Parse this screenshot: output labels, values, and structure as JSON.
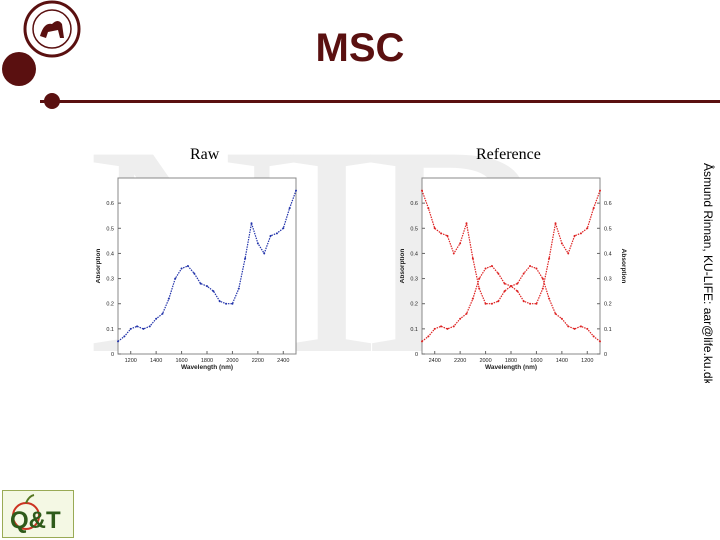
{
  "slide": {
    "title": "MSC",
    "watermark": "NIR",
    "author": "Åsmund Rinnan, KU-LIFE: aar@life.ku.dk",
    "logo_text": "Q&T",
    "panel_left_label": "Raw",
    "panel_right_label": "Reference"
  },
  "colors": {
    "accent": "#5a1010",
    "raw": "#2233aa",
    "ref": "#dd2222"
  },
  "chart_data": [
    {
      "type": "line",
      "xlabel": "Wavelength (nm)",
      "ylabel": "Absorption",
      "xlim": [
        1100,
        2500
      ],
      "ylim": [
        0,
        0.7
      ],
      "xticks": [
        "1200",
        "1400",
        "1600",
        "1800",
        "2000",
        "2200",
        "2400"
      ],
      "yticks": [
        "0",
        "0.1",
        "0.2",
        "0.3",
        "0.4",
        "0.5",
        "0.6"
      ],
      "series": [
        {
          "x": [
            1100,
            1150,
            1200,
            1250,
            1300,
            1350,
            1400,
            1450,
            1500,
            1550,
            1600,
            1650,
            1700,
            1750,
            1800,
            1850,
            1900,
            1950,
            2000,
            2050,
            2100,
            2150,
            2200,
            2250,
            2300,
            2350,
            2400,
            2450,
            2500
          ],
          "y": [
            0.05,
            0.07,
            0.1,
            0.11,
            0.1,
            0.11,
            0.14,
            0.16,
            0.22,
            0.3,
            0.34,
            0.35,
            0.32,
            0.28,
            0.27,
            0.25,
            0.21,
            0.2,
            0.2,
            0.26,
            0.38,
            0.52,
            0.44,
            0.4,
            0.47,
            0.48,
            0.5,
            0.58,
            0.65
          ]
        }
      ]
    },
    {
      "type": "line",
      "xlabel": "Wavelength (nm)",
      "ylabel": "Absorption",
      "y2label": "Absorption",
      "xlim": [
        2500,
        1100
      ],
      "ylim": [
        0,
        0.7
      ],
      "xticks": [
        "2400",
        "2200",
        "2000",
        "1800",
        "1600",
        "1400",
        "1200"
      ],
      "yticks": [
        "0",
        "0.1",
        "0.2",
        "0.3",
        "0.4",
        "0.5",
        "0.6"
      ],
      "series": [
        {
          "x": [
            2500,
            2450,
            2400,
            2350,
            2300,
            2250,
            2200,
            2150,
            2100,
            2050,
            2000,
            1950,
            1900,
            1850,
            1800,
            1750,
            1700,
            1650,
            1600,
            1550,
            1500,
            1450,
            1400,
            1350,
            1300,
            1250,
            1200,
            1150,
            1100
          ],
          "y": [
            0.65,
            0.58,
            0.5,
            0.48,
            0.47,
            0.4,
            0.44,
            0.52,
            0.38,
            0.26,
            0.2,
            0.2,
            0.21,
            0.25,
            0.27,
            0.28,
            0.32,
            0.35,
            0.34,
            0.3,
            0.22,
            0.16,
            0.14,
            0.11,
            0.1,
            0.11,
            0.1,
            0.07,
            0.05
          ]
        },
        {
          "x": [
            2500,
            2450,
            2400,
            2350,
            2300,
            2250,
            2200,
            2150,
            2100,
            2050,
            2000,
            1950,
            1900,
            1850,
            1800,
            1750,
            1700,
            1650,
            1600,
            1550,
            1500,
            1450,
            1400,
            1350,
            1300,
            1250,
            1200,
            1150,
            1100
          ],
          "y": [
            0.05,
            0.07,
            0.1,
            0.11,
            0.1,
            0.11,
            0.14,
            0.16,
            0.22,
            0.3,
            0.34,
            0.35,
            0.32,
            0.28,
            0.27,
            0.25,
            0.21,
            0.2,
            0.2,
            0.26,
            0.38,
            0.52,
            0.44,
            0.4,
            0.47,
            0.48,
            0.5,
            0.58,
            0.65
          ]
        }
      ]
    }
  ]
}
